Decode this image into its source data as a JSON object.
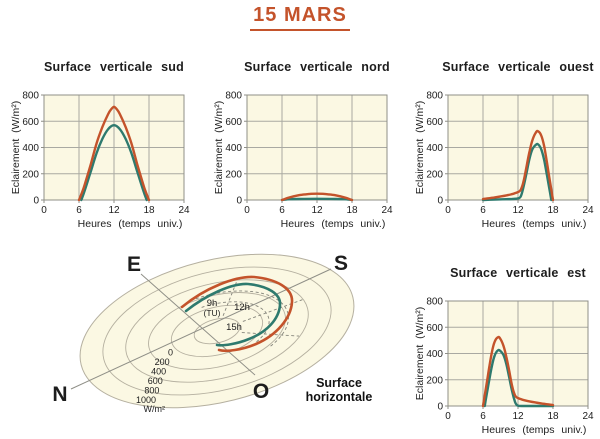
{
  "page_title": "15 MARS",
  "colors": {
    "accent": "#C4532B",
    "orange_curve": "#C4532B",
    "teal_curve": "#2E7A6E",
    "plot_bg": "#FBF8E3",
    "grid": "#A9A9A2",
    "plot_border": "#8F8F87",
    "ring": "#B5B0A0",
    "dashed": "#85857B",
    "text": "#1D1D1D"
  },
  "axis": {
    "x_label": "Heures (temps univ.)",
    "y_label": "Eclairement (W/m²)",
    "x_ticks": [
      0,
      6,
      12,
      18,
      24
    ],
    "y_ticks": [
      0,
      200,
      400,
      600,
      800
    ],
    "x_range": [
      0,
      24
    ],
    "y_range": [
      0,
      800
    ]
  },
  "chart_data": [
    {
      "id": "sud",
      "type": "line",
      "title": "Surface verticale sud",
      "xlabel": "Heures (temps univ.)",
      "ylabel": "Eclairement (W/m²)",
      "xlim": [
        0,
        24
      ],
      "ylim": [
        0,
        800
      ],
      "series": [
        {
          "name": "courbe-teal",
          "color": "#2E7A6E",
          "points": [
            [
              6.4,
              0
            ],
            [
              7,
              75
            ],
            [
              8,
              215
            ],
            [
              9,
              355
            ],
            [
              10,
              465
            ],
            [
              11,
              540
            ],
            [
              12,
              570
            ],
            [
              13,
              540
            ],
            [
              14,
              465
            ],
            [
              15,
              355
            ],
            [
              16,
              215
            ],
            [
              17,
              75
            ],
            [
              17.6,
              0
            ]
          ]
        },
        {
          "name": "courbe-orange",
          "color": "#C4532B",
          "points": [
            [
              6,
              0
            ],
            [
              6.5,
              55
            ],
            [
              7,
              120
            ],
            [
              8,
              270
            ],
            [
              9,
              430
            ],
            [
              10,
              555
            ],
            [
              11,
              655
            ],
            [
              11.5,
              690
            ],
            [
              12,
              710
            ],
            [
              12.5,
              690
            ],
            [
              13,
              655
            ],
            [
              14,
              555
            ],
            [
              15,
              430
            ],
            [
              16,
              270
            ],
            [
              17,
              120
            ],
            [
              17.5,
              55
            ],
            [
              18,
              0
            ]
          ]
        }
      ]
    },
    {
      "id": "nord",
      "type": "line",
      "title": "Surface verticale nord",
      "xlabel": "Heures (temps univ.)",
      "ylabel": "Eclairement (W/m²)",
      "xlim": [
        0,
        24
      ],
      "ylim": [
        0,
        800
      ],
      "series": [
        {
          "name": "courbe-teal",
          "color": "#2E7A6E",
          "points": [
            [
              6,
              0
            ],
            [
              7,
              5
            ],
            [
              9,
              8
            ],
            [
              12,
              9
            ],
            [
              15,
              8
            ],
            [
              17,
              5
            ],
            [
              18,
              0
            ]
          ]
        },
        {
          "name": "courbe-orange",
          "color": "#C4532B",
          "points": [
            [
              6,
              0
            ],
            [
              7,
              16
            ],
            [
              8,
              28
            ],
            [
              9,
              37
            ],
            [
              10,
              43
            ],
            [
              11,
              47
            ],
            [
              12,
              48
            ],
            [
              13,
              47
            ],
            [
              14,
              43
            ],
            [
              15,
              37
            ],
            [
              16,
              28
            ],
            [
              17,
              16
            ],
            [
              18,
              0
            ]
          ]
        }
      ]
    },
    {
      "id": "ouest",
      "type": "line",
      "title": "Surface verticale ouest",
      "xlabel": "Heures (temps univ.)",
      "ylabel": "Eclairement (W/m²)",
      "xlim": [
        0,
        24
      ],
      "ylim": [
        0,
        800
      ],
      "series": [
        {
          "name": "courbe-teal",
          "color": "#2E7A6E",
          "points": [
            [
              6,
              0
            ],
            [
              8,
              3
            ],
            [
              10,
              6
            ],
            [
              11,
              8
            ],
            [
              12,
              12
            ],
            [
              12.5,
              30
            ],
            [
              13,
              110
            ],
            [
              13.5,
              215
            ],
            [
              14,
              320
            ],
            [
              14.5,
              390
            ],
            [
              15,
              418
            ],
            [
              15.4,
              425
            ],
            [
              16,
              385
            ],
            [
              16.5,
              300
            ],
            [
              17,
              180
            ],
            [
              17.4,
              80
            ],
            [
              17.7,
              0
            ]
          ]
        },
        {
          "name": "courbe-orange",
          "color": "#C4532B",
          "points": [
            [
              6,
              8
            ],
            [
              8,
              20
            ],
            [
              10,
              35
            ],
            [
              11,
              45
            ],
            [
              12,
              60
            ],
            [
              12.5,
              80
            ],
            [
              13,
              150
            ],
            [
              13.5,
              265
            ],
            [
              14,
              375
            ],
            [
              14.5,
              460
            ],
            [
              15,
              510
            ],
            [
              15.4,
              525
            ],
            [
              16,
              490
            ],
            [
              16.5,
              405
            ],
            [
              17,
              275
            ],
            [
              17.5,
              135
            ],
            [
              18,
              0
            ]
          ]
        }
      ]
    },
    {
      "id": "est",
      "type": "line",
      "title": "Surface verticale est",
      "xlabel": "Heures (temps univ.)",
      "ylabel": "Eclairement (W/m²)",
      "xlim": [
        0,
        24
      ],
      "ylim": [
        0,
        800
      ],
      "series": [
        {
          "name": "courbe-teal",
          "color": "#2E7A6E",
          "points": [
            [
              6.3,
              0
            ],
            [
              6.6,
              80
            ],
            [
              7,
              180
            ],
            [
              7.5,
              300
            ],
            [
              8,
              385
            ],
            [
              8.6,
              425
            ],
            [
              9,
              418
            ],
            [
              9.5,
              390
            ],
            [
              10,
              320
            ],
            [
              10.5,
              215
            ],
            [
              11,
              110
            ],
            [
              11.5,
              30
            ],
            [
              11.8,
              8
            ],
            [
              12,
              2
            ],
            [
              13,
              0
            ],
            [
              18,
              0
            ]
          ]
        },
        {
          "name": "courbe-orange",
          "color": "#C4532B",
          "points": [
            [
              6,
              0
            ],
            [
              6.5,
              135
            ],
            [
              7,
              275
            ],
            [
              7.5,
              405
            ],
            [
              8,
              490
            ],
            [
              8.6,
              525
            ],
            [
              9,
              510
            ],
            [
              9.5,
              460
            ],
            [
              10,
              375
            ],
            [
              10.5,
              265
            ],
            [
              11,
              150
            ],
            [
              11.5,
              80
            ],
            [
              12,
              60
            ],
            [
              13,
              45
            ],
            [
              14,
              35
            ],
            [
              16,
              20
            ],
            [
              18,
              8
            ]
          ]
        }
      ]
    },
    {
      "id": "horizontale",
      "type": "polar-perspective",
      "label": "Surface horizontale",
      "compass": {
        "east": "E",
        "south": "S",
        "north": "N",
        "west": "O"
      },
      "rings_w_m2": [
        0,
        200,
        400,
        600,
        800,
        1000
      ],
      "units_label": "W/m²",
      "hour_labels": {
        "h9": "9h",
        "tu": "(TU)",
        "h12": "12h",
        "h15": "15h"
      },
      "series": [
        {
          "name": "courbe-teal",
          "color": "#2E7A6E",
          "points_hour_value_approx": [
            [
              6,
              0
            ],
            [
              9,
              320
            ],
            [
              12,
              470
            ],
            [
              15,
              320
            ],
            [
              18,
              0
            ]
          ]
        },
        {
          "name": "courbe-orange",
          "color": "#C4532B",
          "points_hour_value_approx": [
            [
              6,
              0
            ],
            [
              9,
              380
            ],
            [
              12,
              550
            ],
            [
              15,
              380
            ],
            [
              18,
              0
            ]
          ]
        }
      ]
    }
  ]
}
